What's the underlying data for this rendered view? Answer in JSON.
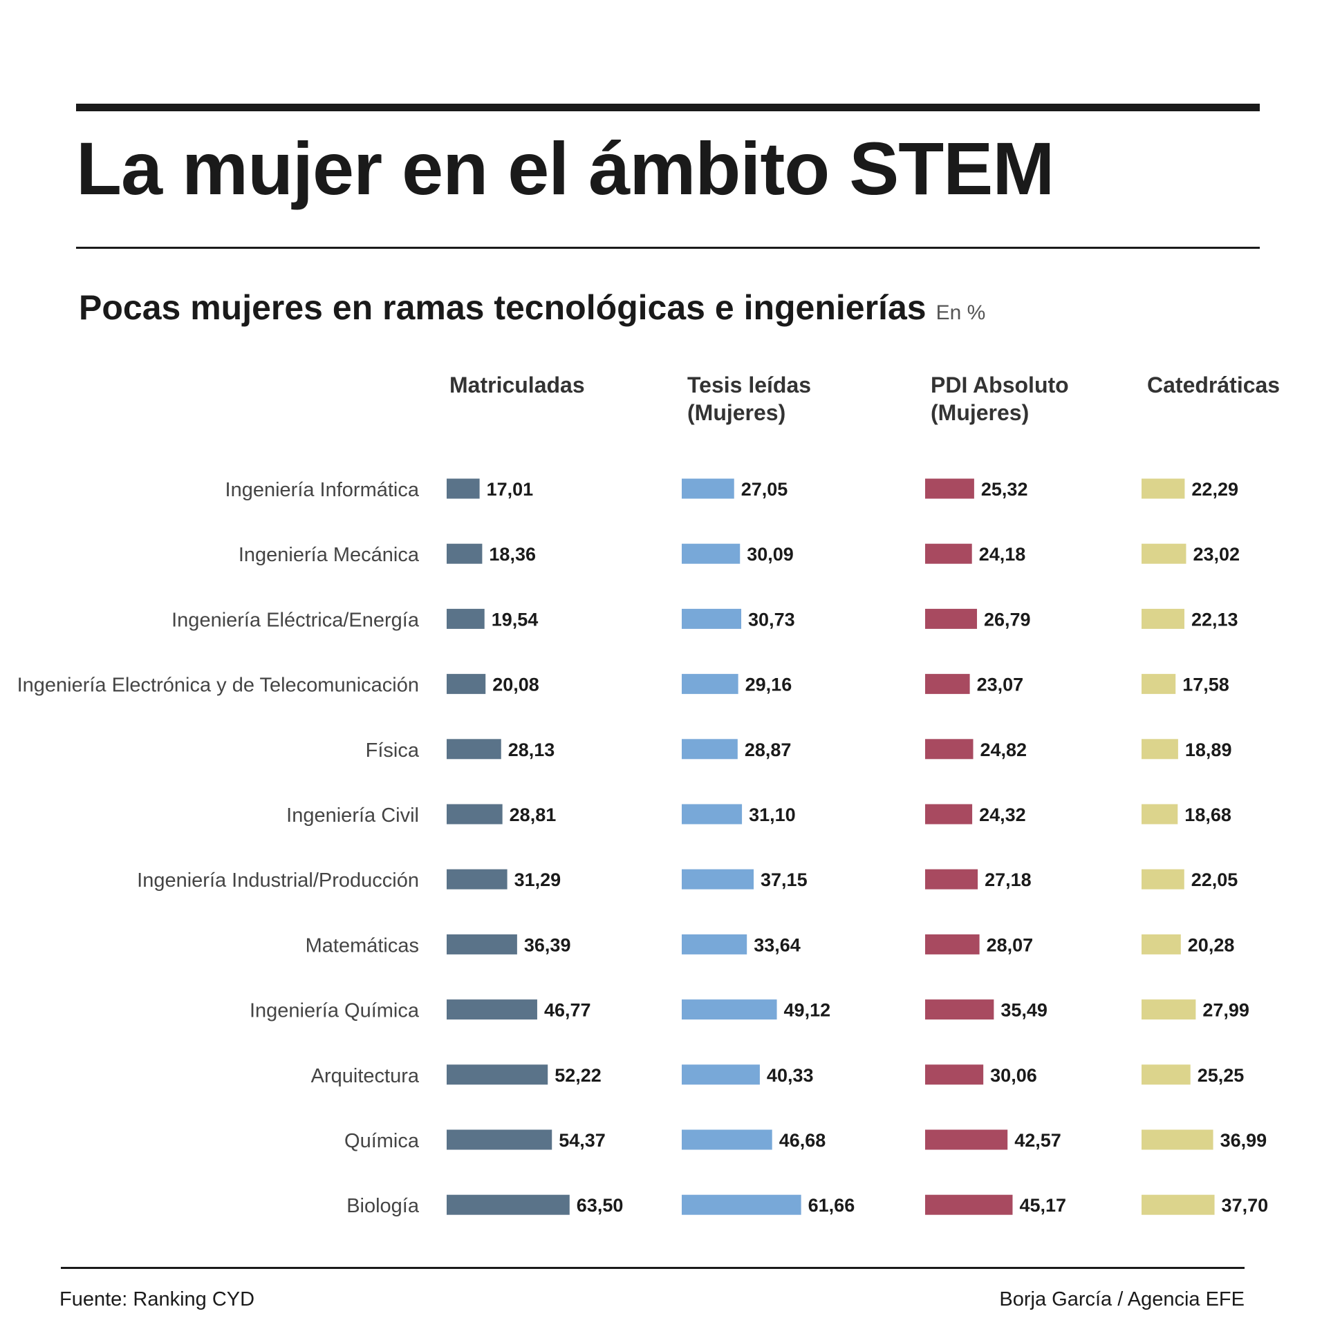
{
  "header": {
    "title": "La mujer en el ámbito STEM"
  },
  "chart_data": {
    "type": "bar",
    "title": "Pocas mujeres en ramas tecnológicas e ingenierías",
    "unit": "En %",
    "categories": [
      "Ingeniería Informática",
      "Ingeniería Mecánica",
      "Ingeniería Eléctrica/Energía",
      "Ingeniería Electrónica y de Telecomunicación",
      "Física",
      "Ingeniería Civil",
      "Ingeniería Industrial/Producción",
      "Matemáticas",
      "Ingeniería Química",
      "Arquitectura",
      "Química",
      "Biología"
    ],
    "series": [
      {
        "name": "Matriculadas",
        "color": "#5a7389",
        "values": [
          17.01,
          18.36,
          19.54,
          20.08,
          28.13,
          28.81,
          31.29,
          36.39,
          46.77,
          52.22,
          54.37,
          63.5
        ],
        "labels": [
          "17,01",
          "18,36",
          "19,54",
          "20,08",
          "28,13",
          "28,81",
          "31,29",
          "36,39",
          "46,77",
          "52,22",
          "54,37",
          "63,50"
        ]
      },
      {
        "name": "Tesis leídas (Mujeres)",
        "color": "#78a8d8",
        "values": [
          27.05,
          30.09,
          30.73,
          29.16,
          28.87,
          31.1,
          37.15,
          33.64,
          49.12,
          40.33,
          46.68,
          61.66
        ],
        "labels": [
          "27,05",
          "30,09",
          "30,73",
          "29,16",
          "28,87",
          "31,10",
          "37,15",
          "33,64",
          "49,12",
          "40,33",
          "46,68",
          "61,66"
        ]
      },
      {
        "name": "PDI Absoluto (Mujeres)",
        "color": "#a84a60",
        "values": [
          25.32,
          24.18,
          26.79,
          23.07,
          24.82,
          24.32,
          27.18,
          28.07,
          35.49,
          30.06,
          42.57,
          45.17
        ],
        "labels": [
          "25,32",
          "24,18",
          "26,79",
          "23,07",
          "24,82",
          "24,32",
          "27,18",
          "28,07",
          "35,49",
          "30,06",
          "42,57",
          "45,17"
        ]
      },
      {
        "name": "Catedráticas",
        "color": "#dcd48c",
        "values": [
          22.29,
          23.02,
          22.13,
          17.58,
          18.89,
          18.68,
          22.05,
          20.28,
          27.99,
          25.25,
          36.99,
          37.7
        ],
        "labels": [
          "22,29",
          "23,02",
          "22,13",
          "17,58",
          "18,89",
          "18,68",
          "22,05",
          "20,28",
          "27,99",
          "25,25",
          "36,99",
          "37,70"
        ]
      }
    ],
    "column_headers": [
      [
        "Matriculadas"
      ],
      [
        "Tesis leídas",
        "(Mujeres)"
      ],
      [
        "PDI Absoluto",
        "(Mujeres)"
      ],
      [
        "Catedráticas"
      ]
    ]
  },
  "footer": {
    "source": "Fuente: Ranking CYD",
    "credit": "Borja García / Agencia EFE"
  }
}
